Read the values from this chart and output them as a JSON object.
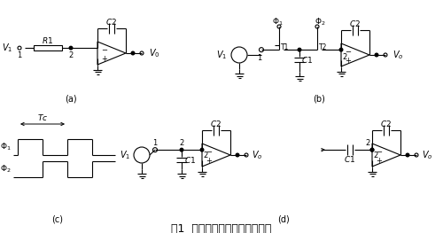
{
  "title": "图1  开关电容滤波器的基本原理",
  "title_fontsize": 9,
  "fig_width": 5.0,
  "fig_height": 2.63,
  "dpi": 100,
  "background_color": "#ffffff",
  "line_color": "#000000",
  "label_a": "(a)",
  "label_b": "(b)",
  "label_c": "(c)",
  "label_d": "(d)"
}
